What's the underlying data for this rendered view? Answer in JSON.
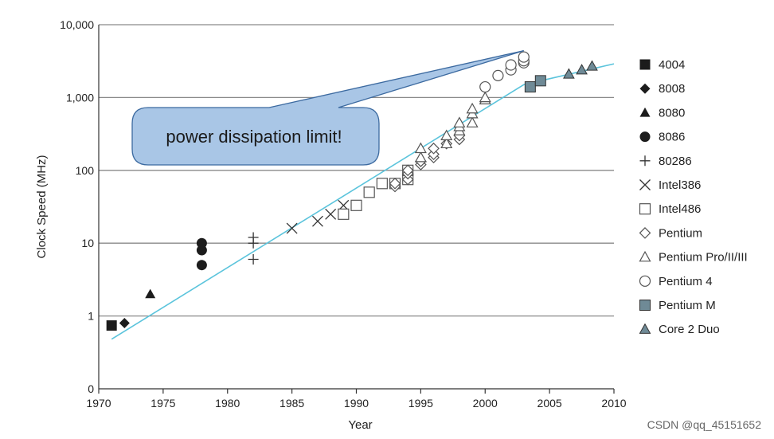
{
  "chart_data": {
    "type": "scatter",
    "title": "",
    "xlabel": "Year",
    "ylabel": "Clock Speed (MHz)",
    "x_range": [
      1970,
      2010
    ],
    "y_scale": "log",
    "y_range": [
      0.1,
      10000
    ],
    "x_ticks": [
      "1970",
      "1975",
      "1980",
      "1985",
      "1990",
      "1995",
      "2000",
      "2005",
      "2010"
    ],
    "y_ticks": [
      {
        "value": 0.1,
        "label": "0"
      },
      {
        "value": 1,
        "label": "1"
      },
      {
        "value": 10,
        "label": "10"
      },
      {
        "value": 100,
        "label": "100"
      },
      {
        "value": 1000,
        "label": "1,000"
      },
      {
        "value": 10000,
        "label": "10,000"
      }
    ],
    "grid": "horizontal",
    "legend_position": "right",
    "series": [
      {
        "name": "4004",
        "marker": "square-filled",
        "points": [
          [
            1971,
            0.74
          ]
        ]
      },
      {
        "name": "8008",
        "marker": "diamond-filled",
        "points": [
          [
            1972,
            0.8
          ]
        ]
      },
      {
        "name": "8080",
        "marker": "triangle-filled",
        "points": [
          [
            1974,
            2
          ]
        ]
      },
      {
        "name": "8086",
        "marker": "circle-filled",
        "points": [
          [
            1978,
            5
          ],
          [
            1978,
            8
          ],
          [
            1978,
            10
          ]
        ]
      },
      {
        "name": "80286",
        "marker": "plus",
        "points": [
          [
            1982,
            6
          ],
          [
            1982,
            10
          ],
          [
            1982,
            12
          ]
        ]
      },
      {
        "name": "Intel386",
        "marker": "cross",
        "points": [
          [
            1985,
            16
          ],
          [
            1987,
            20
          ],
          [
            1988,
            25
          ],
          [
            1989,
            33
          ]
        ]
      },
      {
        "name": "Intel486",
        "marker": "square-open",
        "points": [
          [
            1989,
            25
          ],
          [
            1990,
            33
          ],
          [
            1991,
            50
          ],
          [
            1992,
            66
          ],
          [
            1993,
            66
          ],
          [
            1994,
            75
          ],
          [
            1994,
            100
          ]
        ]
      },
      {
        "name": "Pentium",
        "marker": "diamond-open",
        "points": [
          [
            1993,
            60
          ],
          [
            1993,
            66
          ],
          [
            1994,
            75
          ],
          [
            1994,
            90
          ],
          [
            1994,
            100
          ],
          [
            1995,
            120
          ],
          [
            1995,
            133
          ],
          [
            1996,
            150
          ],
          [
            1996,
            166
          ],
          [
            1996,
            200
          ],
          [
            1997,
            233
          ],
          [
            1998,
            266
          ],
          [
            1998,
            300
          ]
        ]
      },
      {
        "name": "Pentium Pro/II/III",
        "marker": "triangle-open",
        "points": [
          [
            1995,
            150
          ],
          [
            1995,
            200
          ],
          [
            1997,
            233
          ],
          [
            1997,
            300
          ],
          [
            1998,
            350
          ],
          [
            1998,
            400
          ],
          [
            1998,
            450
          ],
          [
            1999,
            450
          ],
          [
            1999,
            600
          ],
          [
            1999,
            700
          ],
          [
            2000,
            933
          ],
          [
            2000,
            1000
          ]
        ]
      },
      {
        "name": "Pentium 4",
        "marker": "circle-open",
        "points": [
          [
            2000,
            1400
          ],
          [
            2001,
            2000
          ],
          [
            2002,
            2400
          ],
          [
            2002,
            2800
          ],
          [
            2003,
            3000
          ],
          [
            2003,
            3200
          ],
          [
            2003,
            3600
          ]
        ]
      },
      {
        "name": "Pentium M",
        "marker": "square-gray",
        "points": [
          [
            2003.5,
            1400
          ],
          [
            2004.3,
            1700
          ]
        ]
      },
      {
        "name": "Core 2 Duo",
        "marker": "triangle-gray",
        "points": [
          [
            2006.5,
            2100
          ],
          [
            2007.5,
            2400
          ],
          [
            2008.3,
            2700
          ]
        ]
      }
    ],
    "trend_line": {
      "color": "#5bc4dc",
      "points": [
        [
          1971,
          0.48
        ],
        [
          2003,
          1500
        ],
        [
          2010,
          2900
        ]
      ]
    },
    "annotation": {
      "text": "power dissipation limit!",
      "points_to": [
        2003,
        4400
      ]
    }
  },
  "watermark": "CSDN @qq_45151652"
}
